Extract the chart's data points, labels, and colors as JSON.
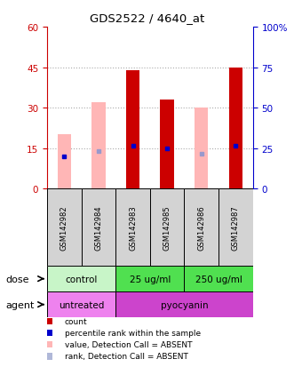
{
  "title": "GDS2522 / 4640_at",
  "samples": [
    "GSM142982",
    "GSM142984",
    "GSM142983",
    "GSM142985",
    "GSM142986",
    "GSM142987"
  ],
  "red_bars": [
    0,
    0,
    44,
    33,
    0,
    45
  ],
  "pink_bars": [
    20,
    32,
    0,
    0,
    30,
    0
  ],
  "blue_dots": [
    12,
    0,
    16,
    15,
    0,
    16
  ],
  "light_blue_dots": [
    0,
    14,
    0,
    0,
    13,
    0
  ],
  "ylim_left": [
    0,
    60
  ],
  "ylim_right": [
    0,
    100
  ],
  "yticks_left": [
    0,
    15,
    30,
    45,
    60
  ],
  "yticks_right": [
    0,
    25,
    50,
    75,
    100
  ],
  "ytick_labels_right": [
    "0",
    "25",
    "50",
    "75",
    "100%"
  ],
  "dose_groups": [
    {
      "label": "control",
      "start": 0,
      "end": 2,
      "color": "#c8f5c8"
    },
    {
      "label": "25 ug/ml",
      "start": 2,
      "end": 4,
      "color": "#50e050"
    },
    {
      "label": "250 ug/ml",
      "start": 4,
      "end": 6,
      "color": "#50e050"
    }
  ],
  "agent_groups": [
    {
      "label": "untreated",
      "start": 0,
      "end": 2,
      "color": "#ee82ee"
    },
    {
      "label": "pyocyanin",
      "start": 2,
      "end": 6,
      "color": "#cc44cc"
    }
  ],
  "dose_label": "dose",
  "agent_label": "agent",
  "legend_items": [
    {
      "color": "#cc0000",
      "label": "count"
    },
    {
      "color": "#0000cc",
      "label": "percentile rank within the sample"
    },
    {
      "color": "#ffb6b6",
      "label": "value, Detection Call = ABSENT"
    },
    {
      "color": "#b0b8d8",
      "label": "rank, Detection Call = ABSENT"
    }
  ],
  "bar_width": 0.4,
  "red_color": "#cc0000",
  "pink_color": "#ffb6b6",
  "blue_dot_color": "#0000cc",
  "light_blue_color": "#9999cc",
  "grid_color": "#aaaaaa",
  "bg_color": "#ffffff",
  "left_tick_color": "#cc0000",
  "right_tick_color": "#0000cc",
  "sample_box_color": "#d3d3d3"
}
